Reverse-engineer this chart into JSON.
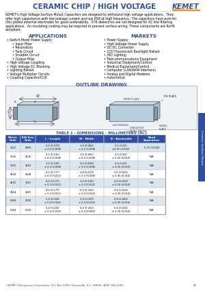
{
  "title": "CERAMIC CHIP / HIGH VOLTAGE",
  "title_color": "#2e4fa3",
  "kemet_color": "#2e4fa3",
  "kemet_charged_color": "#f7941d",
  "intro_text": "KEMET's High Voltage Surface Mount Capacitors are designed to withstand high voltage applications.  They offer high capacitance with low leakage current and low ESR at high frequency.  The capacitors have pure tin (Sn) plated external electrodes for good solderability.  X7R dielectrics are not designed for AC line filtering applications.  An insulating coating may be required to prevent surface arcing. These components are RoHS compliant.",
  "applications_title": "APPLICATIONS",
  "markets_title": "MARKETS",
  "applications": [
    "• Switch Mode Power Supply",
    "    • Input Filter",
    "    • Resonators",
    "    • Tank Circuit",
    "    • Snubber Circuit",
    "    • Output Filter",
    "• High Voltage Coupling",
    "• High Voltage DC Blocking",
    "• Lighting Ballast",
    "• Voltage Multiplier Circuits",
    "• Coupling Capacitor/CUK"
  ],
  "markets": [
    "• Power Supply",
    "• High Voltage Power Supply",
    "• DC-DC Converter",
    "• LCD Fluorescent Backlight Ballast",
    "• HID Lighting",
    "• Telecommunications Equipment",
    "• Industrial Equipment/Control",
    "• Medical Equipment/Control",
    "• Computer (LAN/WAN Interface)",
    "• Analog and Digital Modems",
    "• Automotive"
  ],
  "outline_drawing_title": "OUTLINE DRAWING",
  "table_title": "TABLE 1 - DIMENSIONS - MILLIMETERS (in.)",
  "table_headers": [
    "Metric\nCode",
    "EIA Size\nCode",
    "L - Length",
    "W - Width",
    "B - Bandwidth",
    "Band\nSeparation"
  ],
  "table_data": [
    [
      "2012",
      "0805",
      "2.0 (0.079)\n± 0.2 (0.008)",
      "1.2 (0.060)\n± 0.2 (0.008)",
      "0.5 (0.02)\n±0.25 (0.010)",
      "0.75 (0.030)"
    ],
    [
      "3216",
      "1206",
      "3.2 (0.126)\n± 0.2 (0.008)",
      "1.6 (0.063)\n± 0.2 (0.008)",
      "0.5 (0.02)\n± 0.25 (0.010)",
      "N/A"
    ],
    [
      "3225",
      "1210",
      "3.2 (0.126)\n± 0.2 (0.008)",
      "2.5 (0.098)\n± 0.2 (0.008)",
      "0.5 (0.02)\n± 0.25 (0.010)",
      "N/A"
    ],
    [
      "4520",
      "1808",
      "4.5 (0.177)\n± 0.3 (0.012)",
      "2.0 (0.079)\n± 0.2 (0.008)",
      "0.6 (0.024)\n± 0.35 (0.014)",
      "N/A"
    ],
    [
      "4532",
      "1812",
      "4.5 (0.177)\n± 0.3 (0.012)",
      "3.2 (0.126)\n± 0.3 (0.012)",
      "0.6 (0.024)\n± 0.35 (0.014)",
      "N/A"
    ],
    [
      "4564",
      "1825",
      "4.5 (0.177)\n± 0.3 (0.012)",
      "6.4 (0.250)\n± 0.4 (0.016)",
      "0.6 (0.024)\n± 0.35 (0.014)",
      "N/A"
    ],
    [
      "5650",
      "2220",
      "5.6 (0.224)\n± 0.4 (0.016)",
      "5.0 (0.197)\n± 0.4 (0.016)",
      "0.6 (0.024)\n± 0.35 (0.014)",
      "N/A"
    ],
    [
      "5664",
      "2225",
      "5.6 (0.224)\n± 0.4 (0.016)",
      "6.4 (0.250)\n± 0.4 (0.016)",
      "0.6 (0.024)\n± 0.35 (0.014)",
      "N/A"
    ]
  ],
  "footer_text": "©KEMET Electronics Corporation, P.O. Box 5928, Greenville, S.C. 29606, (864) 963-6300",
  "page_number": "81",
  "tab_text": "Ceramic Surface Mount",
  "tab_color": "#2e4fa3",
  "background_color": "#ffffff",
  "header_color": "#2e4fa3",
  "table_header_bg": "#2e4fa3",
  "table_header_color": "#ffffff",
  "table_row_alt": "#dce6f1",
  "table_row_white": "#ffffff"
}
